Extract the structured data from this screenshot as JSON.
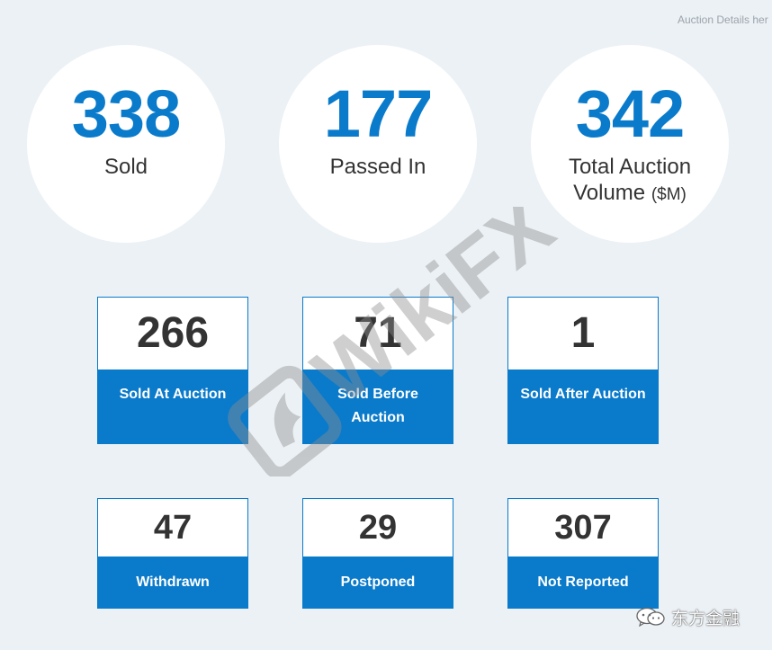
{
  "header": {
    "link_text": "Auction Details her"
  },
  "stats": {
    "sold": {
      "value": "338",
      "label": "Sold"
    },
    "passed_in": {
      "value": "177",
      "label": "Passed In"
    },
    "volume": {
      "value": "342",
      "label": "Total Auction",
      "label_line2": "Volume",
      "unit": "($M)"
    }
  },
  "breakdown": {
    "sold_at_auction": {
      "value": "266",
      "label": "Sold At Auction"
    },
    "sold_before_auction": {
      "value": "71",
      "label_line1": "Sold Before",
      "label_line2": "Auction"
    },
    "sold_after_auction": {
      "value": "1",
      "label": "Sold After Auction"
    },
    "withdrawn": {
      "value": "47",
      "label": "Withdrawn"
    },
    "postponed": {
      "value": "29",
      "label": "Postponed"
    },
    "not_reported": {
      "value": "307",
      "label": "Not Reported"
    }
  },
  "watermark": {
    "text": "WikiFX"
  },
  "brand": {
    "text": "东方金融",
    "icon": "wechat-icon"
  },
  "colors": {
    "accent": "#0a7acb",
    "background": "#ecf1f5",
    "watermark": "#9a9a9a"
  }
}
